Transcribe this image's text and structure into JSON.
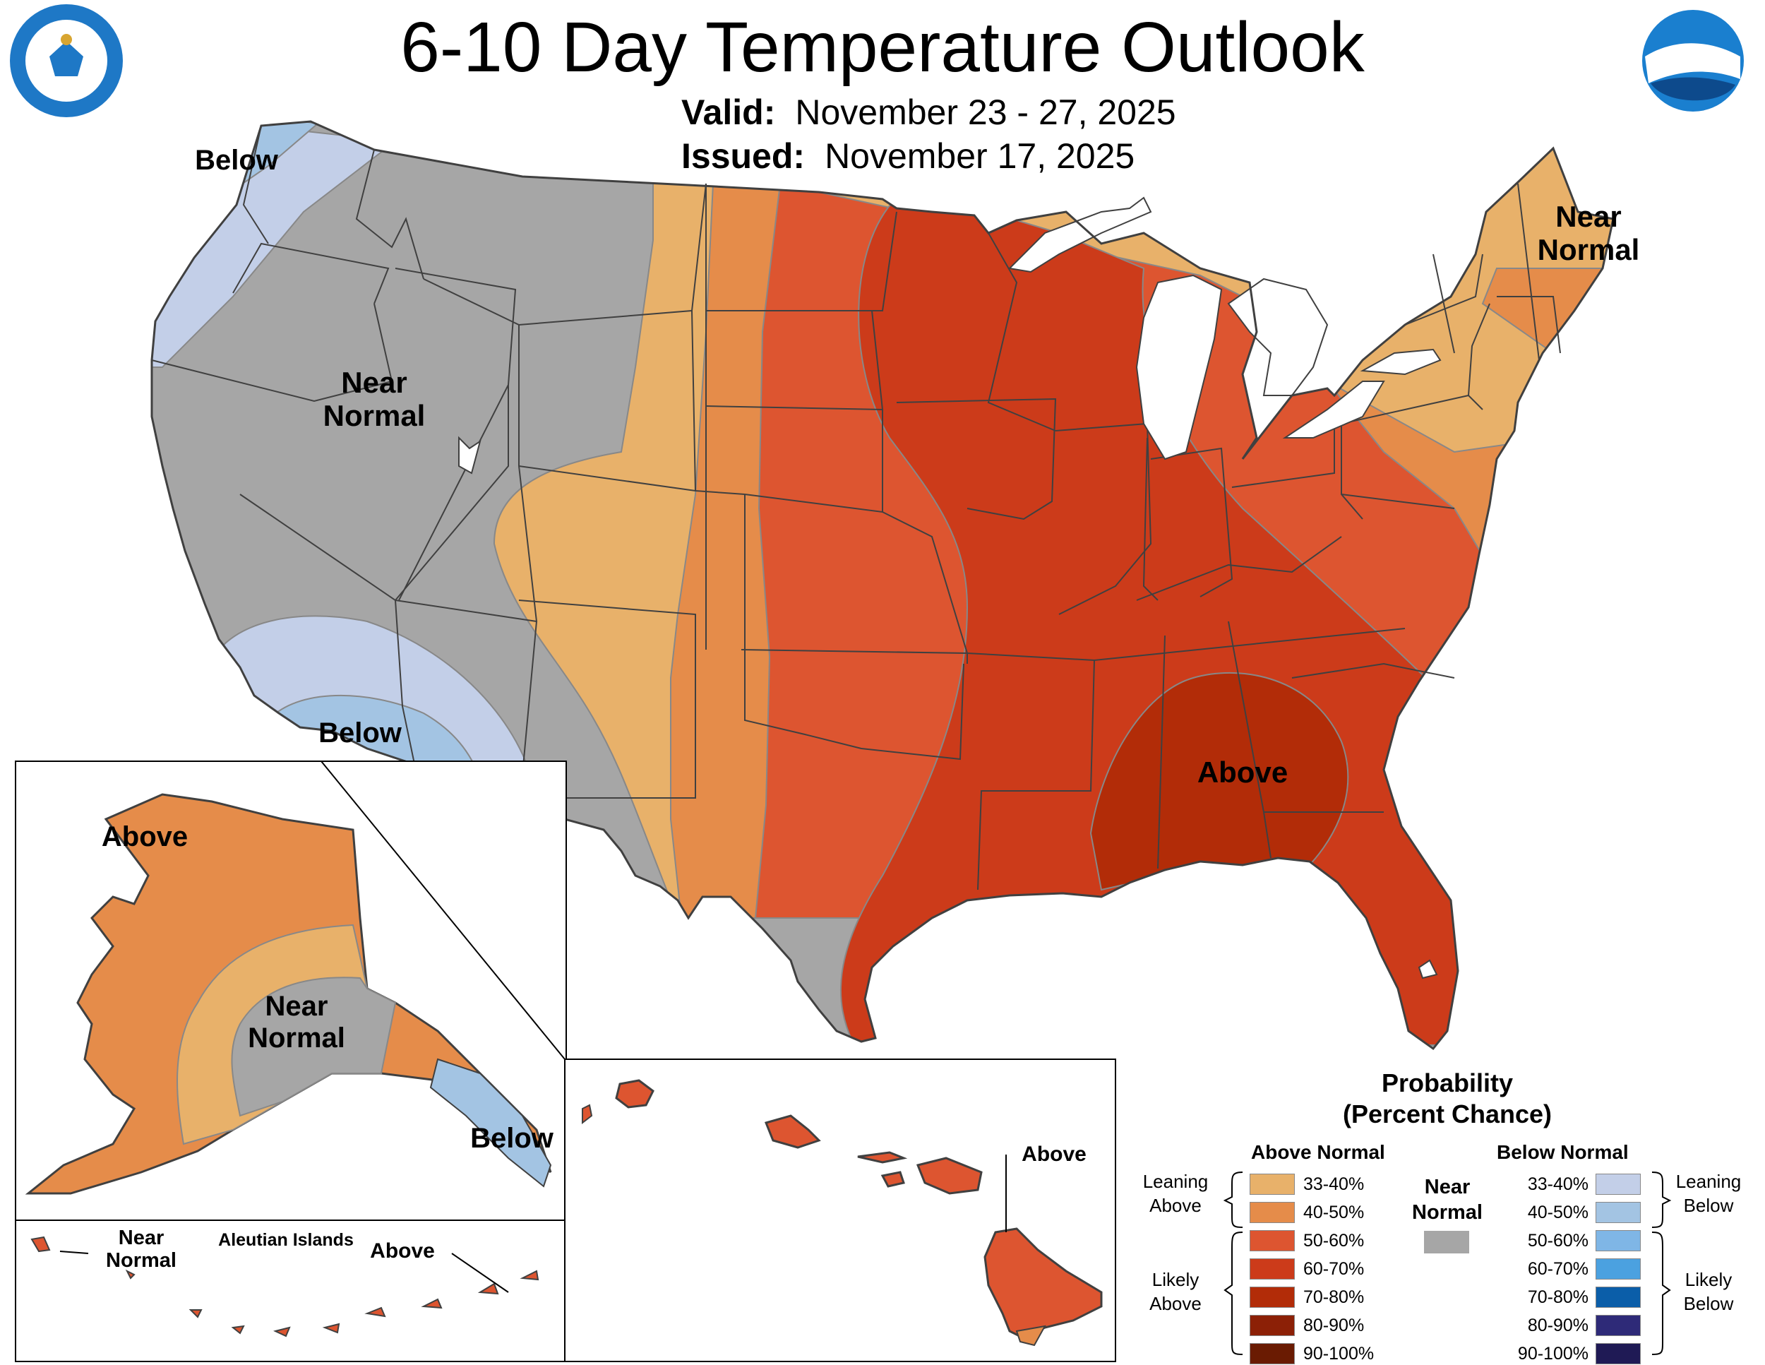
{
  "header": {
    "title": "6-10 Day Temperature Outlook",
    "valid_label": "Valid:",
    "valid_value": "November 23 - 27, 2025",
    "issued_label": "Issued:",
    "issued_value": "November 17, 2025"
  },
  "logos": {
    "commerce": "DEPARTMENT OF COMMERCE · UNITED STATES OF AMERICA",
    "noaa": "NOAA"
  },
  "map_labels": {
    "nw_below": "Below",
    "west_near_1": "Near",
    "west_near_2": "Normal",
    "sw_below": "Below",
    "ne_near_1": "Near",
    "ne_near_2": "Normal",
    "se_above": "Above"
  },
  "alaska": {
    "above": "Above",
    "near_1": "Near",
    "near_2": "Normal",
    "below": "Below",
    "aleutian_title": "Aleutian Islands",
    "aleutian_near_1": "Near",
    "aleutian_near_2": "Normal",
    "aleutian_above": "Above"
  },
  "hawaii": {
    "above": "Above"
  },
  "legend": {
    "title_1": "Probability",
    "title_2": "(Percent Chance)",
    "above_header": "Above Normal",
    "below_header": "Below Normal",
    "near_1": "Near",
    "near_2": "Normal",
    "leaning_above_1": "Leaning",
    "leaning_above_2": "Above",
    "likely_above_1": "Likely",
    "likely_above_2": "Above",
    "leaning_below_1": "Leaning",
    "leaning_below_2": "Below",
    "likely_below_1": "Likely",
    "likely_below_2": "Below",
    "above": [
      {
        "label": "33-40%",
        "color": "#e8b16a"
      },
      {
        "label": "40-50%",
        "color": "#e58c4a"
      },
      {
        "label": "50-60%",
        "color": "#dd5530"
      },
      {
        "label": "60-70%",
        "color": "#cc3b1a"
      },
      {
        "label": "70-80%",
        "color": "#b22c08"
      },
      {
        "label": "80-90%",
        "color": "#8c2006"
      },
      {
        "label": "90-100%",
        "color": "#6a1b02"
      }
    ],
    "near_color": "#a6a6a6",
    "below": [
      {
        "label": "33-40%",
        "color": "#c3cfe8"
      },
      {
        "label": "40-50%",
        "color": "#a3c4e3"
      },
      {
        "label": "50-60%",
        "color": "#7fb6e6"
      },
      {
        "label": "60-70%",
        "color": "#4ba1e0"
      },
      {
        "label": "70-80%",
        "color": "#0b5ea9"
      },
      {
        "label": "80-90%",
        "color": "#2e2a78"
      },
      {
        "label": "90-100%",
        "color": "#1f1a55"
      }
    ]
  }
}
